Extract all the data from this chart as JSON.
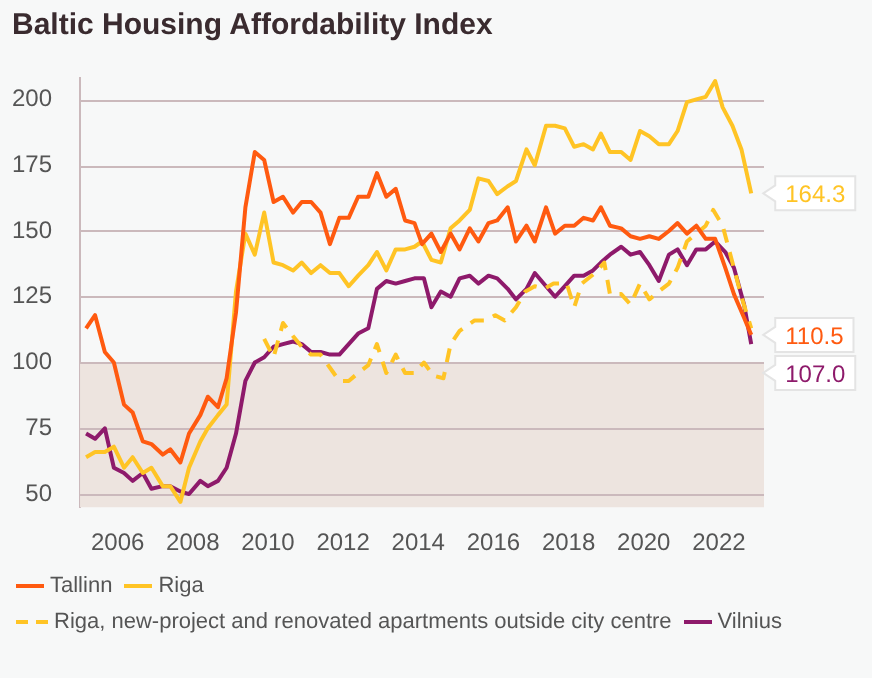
{
  "chart_data": {
    "type": "line",
    "title": "Baltic Housing Affordability Index",
    "xlim": [
      2005,
      2023.2
    ],
    "xticks": [
      2006,
      2008,
      2010,
      2012,
      2014,
      2016,
      2018,
      2020,
      2022
    ],
    "ylim": [
      45,
      208
    ],
    "yticks": [
      50,
      75,
      100,
      125,
      150,
      175,
      200
    ],
    "grid": "y",
    "legend": "bottom",
    "marker": "none",
    "bands": [
      {
        "axis": "y",
        "from": 45,
        "to": 100,
        "color": "#ede4df"
      }
    ],
    "series": [
      {
        "name": "Tallinn",
        "color": "#ff5a10",
        "line_style": "solid",
        "x": [
          2005.16,
          2005.4,
          2005.66,
          2005.9,
          2006.17,
          2006.4,
          2006.67,
          2006.9,
          2007.2,
          2007.4,
          2007.67,
          2007.9,
          2008.2,
          2008.4,
          2008.67,
          2008.9,
          2009.15,
          2009.4,
          2009.65,
          2009.9,
          2010.15,
          2010.4,
          2010.67,
          2010.9,
          2011.15,
          2011.4,
          2011.65,
          2011.9,
          2012.15,
          2012.4,
          2012.67,
          2012.9,
          2013.15,
          2013.4,
          2013.65,
          2013.9,
          2014.1,
          2014.35,
          2014.6,
          2014.86,
          2015.1,
          2015.37,
          2015.6,
          2015.87,
          2016.1,
          2016.38,
          2016.6,
          2016.88,
          2017.1,
          2017.4,
          2017.64,
          2017.9,
          2018.15,
          2018.4,
          2018.65,
          2018.86,
          2019.1,
          2019.4,
          2019.65,
          2019.9,
          2020.15,
          2020.4,
          2020.67,
          2020.9,
          2021.15,
          2021.4,
          2021.65,
          2021.9,
          2022.17,
          2022.4,
          2022.67,
          2022.86
        ],
        "values": [
          113,
          118,
          104,
          100,
          84,
          81,
          70,
          69,
          65,
          67,
          62,
          73,
          80,
          87,
          83,
          94,
          119,
          159,
          180,
          177,
          161,
          163,
          157,
          161,
          161,
          157,
          145,
          155,
          155,
          163,
          163,
          172,
          163,
          166,
          154,
          153,
          145,
          149,
          142,
          149,
          143,
          151,
          146,
          153,
          154,
          159,
          146,
          152,
          146,
          159,
          149,
          152,
          152,
          155,
          154,
          159,
          152,
          151,
          148,
          147,
          148,
          147,
          150,
          153,
          149,
          152,
          147,
          147,
          136,
          126,
          117,
          110.5
        ],
        "value_labels": [
          null,
          null,
          null,
          null,
          null,
          null,
          null,
          null,
          null,
          null,
          null,
          null,
          null,
          null,
          null,
          null,
          null,
          null,
          null,
          null,
          null,
          null,
          null,
          null,
          null,
          null,
          null,
          null,
          null,
          null,
          null,
          null,
          null,
          null,
          null,
          null,
          null,
          null,
          null,
          null,
          null,
          null,
          null,
          null,
          null,
          null,
          null,
          null,
          null,
          null,
          null,
          null,
          null,
          null,
          null,
          null,
          null,
          null,
          null,
          null,
          null,
          null,
          null,
          null,
          null,
          null,
          null,
          null,
          null,
          null,
          null,
          "110.5"
        ]
      },
      {
        "name": "Riga",
        "color": "#ffc425",
        "line_style": "solid",
        "x": [
          2005.16,
          2005.4,
          2005.66,
          2005.9,
          2006.17,
          2006.4,
          2006.67,
          2006.9,
          2007.2,
          2007.4,
          2007.67,
          2007.9,
          2008.2,
          2008.4,
          2008.67,
          2008.9,
          2009.15,
          2009.4,
          2009.65,
          2009.9,
          2010.15,
          2010.4,
          2010.67,
          2010.9,
          2011.15,
          2011.4,
          2011.65,
          2011.9,
          2012.15,
          2012.4,
          2012.67,
          2012.9,
          2013.15,
          2013.4,
          2013.65,
          2013.9,
          2014.1,
          2014.35,
          2014.6,
          2014.86,
          2015.1,
          2015.37,
          2015.6,
          2015.87,
          2016.1,
          2016.38,
          2016.6,
          2016.88,
          2017.1,
          2017.4,
          2017.64,
          2017.9,
          2018.15,
          2018.4,
          2018.65,
          2018.86,
          2019.1,
          2019.4,
          2019.65,
          2019.9,
          2020.15,
          2020.4,
          2020.67,
          2020.9,
          2021.15,
          2021.4,
          2021.65,
          2021.9,
          2022.1,
          2022.36,
          2022.6,
          2022.86
        ],
        "values": [
          64,
          66,
          66,
          68,
          60,
          64,
          58,
          60,
          53,
          53,
          47,
          60,
          70,
          75,
          80,
          84,
          127,
          149,
          141,
          157,
          138,
          137,
          135,
          138,
          134,
          137,
          134,
          134,
          129,
          133,
          137,
          142,
          135,
          143,
          143,
          144,
          146,
          139,
          138,
          151,
          154,
          158,
          170,
          169,
          164,
          167,
          169,
          181,
          175,
          190,
          190,
          189,
          182,
          183,
          181,
          187,
          180,
          180,
          177,
          188,
          186,
          183,
          183,
          188,
          199,
          200,
          201,
          207,
          197,
          190,
          181,
          164.3
        ],
        "value_labels": [
          null,
          null,
          null,
          null,
          null,
          null,
          null,
          null,
          null,
          null,
          null,
          null,
          null,
          null,
          null,
          null,
          null,
          null,
          null,
          null,
          null,
          null,
          null,
          null,
          null,
          null,
          null,
          null,
          null,
          null,
          null,
          null,
          null,
          null,
          null,
          null,
          null,
          null,
          null,
          null,
          null,
          null,
          null,
          null,
          null,
          null,
          null,
          null,
          null,
          null,
          null,
          null,
          null,
          null,
          null,
          null,
          null,
          null,
          null,
          null,
          null,
          null,
          null,
          null,
          null,
          null,
          null,
          null,
          null,
          null,
          null,
          "164.3"
        ]
      },
      {
        "name": "Riga, new-project and renovated apartments outside city centre",
        "color": "#ffc425",
        "line_style": "dashed",
        "x": [
          2009.9,
          2010.15,
          2010.4,
          2010.67,
          2010.9,
          2011.15,
          2011.4,
          2011.65,
          2011.9,
          2012.15,
          2012.4,
          2012.67,
          2012.9,
          2013.15,
          2013.4,
          2013.65,
          2013.9,
          2014.15,
          2014.4,
          2014.67,
          2014.86,
          2015.1,
          2015.5,
          2015.8,
          2016.05,
          2016.3,
          2016.6,
          2016.85,
          2017.1,
          2017.35,
          2017.6,
          2017.95,
          2018.15,
          2018.35,
          2018.7,
          2018.95,
          2019.1,
          2019.4,
          2019.65,
          2019.9,
          2020.15,
          2020.4,
          2020.67,
          2020.9,
          2021.15,
          2021.4,
          2021.65,
          2021.85,
          2022.1,
          2022.36,
          2022.6,
          2022.86
        ],
        "values": [
          109,
          102,
          115,
          110,
          106,
          103,
          103,
          98,
          93,
          93,
          96,
          99,
          107,
          96,
          103,
          96,
          96,
          100,
          95,
          94,
          107,
          112,
          116,
          116,
          118,
          116,
          121,
          127,
          129,
          128,
          130,
          130,
          121,
          130,
          134,
          138,
          126,
          126,
          122,
          130,
          124,
          127,
          130,
          136,
          146,
          149,
          152,
          158,
          152,
          138,
          125,
          113
        ]
      },
      {
        "name": "Vilnius",
        "color": "#8e1a6b",
        "line_style": "solid",
        "x": [
          2005.16,
          2005.4,
          2005.66,
          2005.9,
          2006.17,
          2006.4,
          2006.67,
          2006.9,
          2007.2,
          2007.4,
          2007.67,
          2007.9,
          2008.2,
          2008.4,
          2008.67,
          2008.9,
          2009.15,
          2009.4,
          2009.65,
          2009.9,
          2010.15,
          2010.4,
          2010.67,
          2010.9,
          2011.15,
          2011.4,
          2011.65,
          2011.9,
          2012.15,
          2012.4,
          2012.67,
          2012.9,
          2013.15,
          2013.4,
          2013.65,
          2013.9,
          2014.15,
          2014.35,
          2014.6,
          2014.86,
          2015.1,
          2015.37,
          2015.6,
          2015.87,
          2016.1,
          2016.38,
          2016.6,
          2016.88,
          2017.1,
          2017.4,
          2017.64,
          2017.9,
          2018.15,
          2018.4,
          2018.65,
          2018.86,
          2019.1,
          2019.4,
          2019.65,
          2019.9,
          2020.15,
          2020.4,
          2020.67,
          2020.9,
          2021.15,
          2021.4,
          2021.65,
          2021.9,
          2022.17,
          2022.4,
          2022.67,
          2022.86
        ],
        "values": [
          73,
          71,
          75,
          60,
          58,
          55,
          58,
          52,
          53,
          53,
          51,
          50,
          55,
          53,
          55,
          60,
          73,
          93,
          100,
          102,
          106,
          107,
          108,
          107,
          104,
          104,
          103,
          103,
          107,
          111,
          113,
          128,
          131,
          130,
          131,
          132,
          132,
          121,
          127,
          125,
          132,
          133,
          130,
          133,
          132,
          128,
          124,
          128,
          134,
          129,
          125,
          129,
          133,
          133,
          135,
          138,
          141,
          144,
          141,
          142,
          137,
          131,
          141,
          143,
          137,
          143,
          143,
          146,
          142,
          136,
          122,
          107.0
        ],
        "value_labels": [
          null,
          null,
          null,
          null,
          null,
          null,
          null,
          null,
          null,
          null,
          null,
          null,
          null,
          null,
          null,
          null,
          null,
          null,
          null,
          null,
          null,
          null,
          null,
          null,
          null,
          null,
          null,
          null,
          null,
          null,
          null,
          null,
          null,
          null,
          null,
          null,
          null,
          null,
          null,
          null,
          null,
          null,
          null,
          null,
          null,
          null,
          null,
          null,
          null,
          null,
          null,
          null,
          null,
          null,
          null,
          null,
          null,
          null,
          null,
          null,
          null,
          null,
          null,
          null,
          null,
          null,
          null,
          null,
          null,
          null,
          null,
          "107.0"
        ]
      }
    ],
    "data_labels": false
  }
}
